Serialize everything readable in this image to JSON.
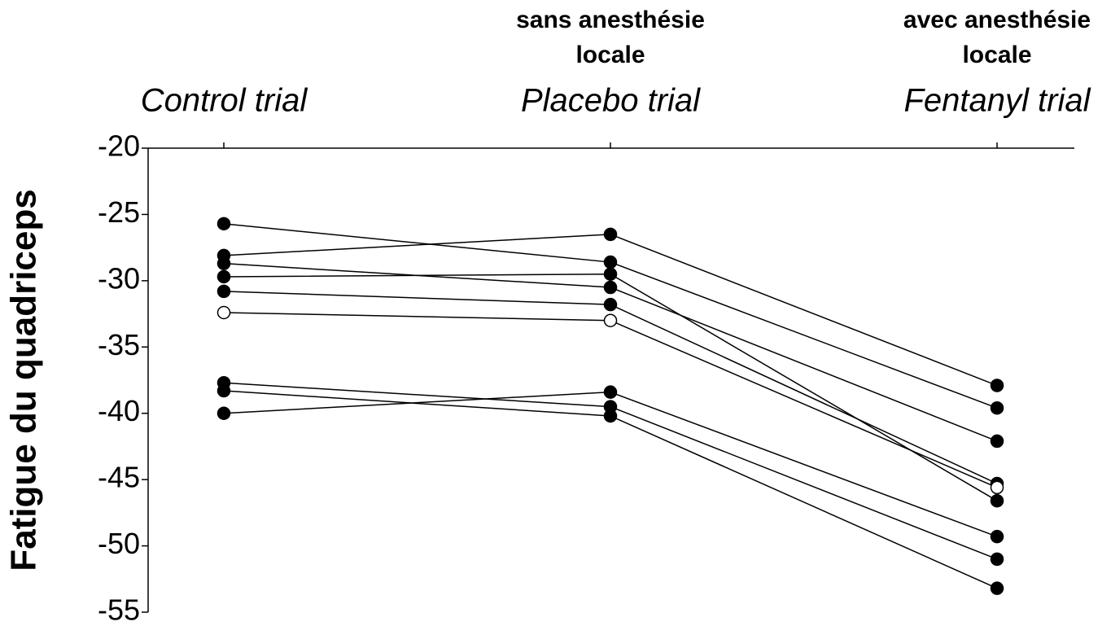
{
  "chart_data": {
    "type": "line",
    "y_label": "Fatigue du quadriceps",
    "categories": [
      "Control trial",
      "Placebo trial",
      "Fentanyl trial"
    ],
    "annotations": [
      null,
      [
        "sans anesthésie",
        "locale"
      ],
      [
        "avec anesthésie",
        "locale"
      ]
    ],
    "ylim": [
      -20,
      -55
    ],
    "yticks": [
      -20,
      -25,
      -30,
      -35,
      -40,
      -45,
      -50,
      -55
    ],
    "series": [
      {
        "color": "#000000",
        "marker_fill": "#000000",
        "values": [
          -25.7,
          -28.6,
          -39.6
        ]
      },
      {
        "color": "#000000",
        "marker_fill": "#000000",
        "values": [
          -28.1,
          -26.5,
          -37.9
        ]
      },
      {
        "color": "#000000",
        "marker_fill": "#000000",
        "values": [
          -28.7,
          -30.5,
          -42.1
        ]
      },
      {
        "color": "#000000",
        "marker_fill": "#000000",
        "values": [
          -29.7,
          -29.5,
          -46.6
        ]
      },
      {
        "color": "#000000",
        "marker_fill": "#000000",
        "values": [
          -30.8,
          -31.8,
          -45.3
        ]
      },
      {
        "color": "#000000",
        "marker_fill": "#ffffff",
        "values": [
          -32.4,
          -33.0,
          -45.6
        ]
      },
      {
        "color": "#000000",
        "marker_fill": "#000000",
        "values": [
          -37.7,
          -39.5,
          -51.0
        ]
      },
      {
        "color": "#000000",
        "marker_fill": "#000000",
        "values": [
          -38.3,
          -40.2,
          -53.2
        ]
      },
      {
        "color": "#000000",
        "marker_fill": "#000000",
        "values": [
          -40.0,
          -38.4,
          -49.3
        ]
      }
    ]
  }
}
